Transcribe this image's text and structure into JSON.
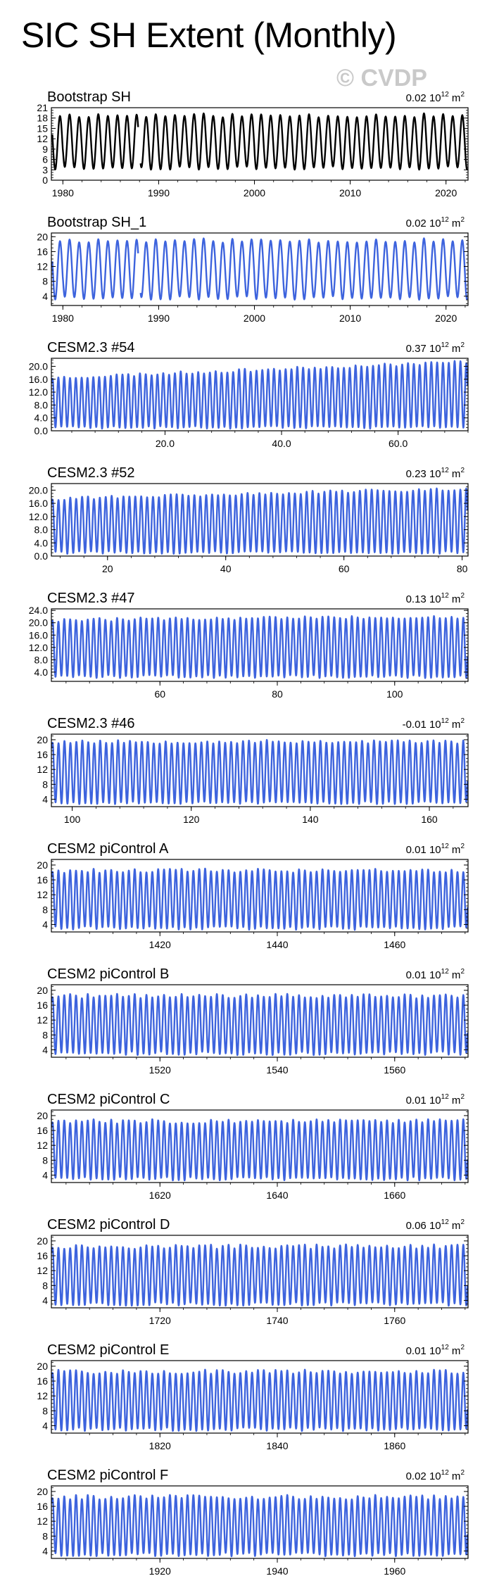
{
  "title": "SIC SH Extent (Monthly)",
  "watermark": "© CVDP",
  "colors": {
    "obs": "#000000",
    "model": "#3d63dd",
    "axis": "#000000"
  },
  "chart_data": [
    {
      "type": "line",
      "title": "Bootstrap SH",
      "trend": "0.02",
      "trend_unit_base": "10",
      "trend_unit_exp": "12",
      "trend_unit_tail": " m",
      "trend_unit_sup2": "2",
      "series_name": "Bootstrap SH",
      "color": "obs",
      "xlim": [
        1978.8,
        2022.3
      ],
      "ylim": [
        0,
        21
      ],
      "yticks": [
        0,
        3,
        6,
        9,
        12,
        15,
        18,
        21
      ],
      "yticklabels": [
        "0",
        "3",
        "6",
        "9",
        "12",
        "15",
        "18",
        "21"
      ],
      "xticks": [
        1980,
        1990,
        2000,
        2010,
        2020
      ],
      "xticklabels": [
        "1980",
        "1990",
        "2000",
        "2010",
        "2020"
      ],
      "series": {
        "start": 1978.9,
        "end": 2022.2,
        "min": 3.5,
        "max": 18.8,
        "peak_frac": 0.7,
        "gap": [
          1987.9,
          1988.1
        ],
        "variability": 0.6,
        "seed": 11
      }
    },
    {
      "type": "line",
      "title": "Bootstrap SH_1",
      "trend": "0.02",
      "trend_unit_base": "10",
      "trend_unit_exp": "12",
      "trend_unit_tail": " m",
      "trend_unit_sup2": "2",
      "series_name": "Bootstrap SH_1",
      "color": "model",
      "xlim": [
        1978.8,
        2022.3
      ],
      "ylim": [
        1.5,
        21
      ],
      "yticks": [
        4,
        8,
        12,
        16,
        20
      ],
      "yticklabels": [
        "4",
        "8",
        "12",
        "16",
        "20"
      ],
      "xticks": [
        1980,
        1990,
        2000,
        2010,
        2020
      ],
      "xticklabels": [
        "1980",
        "1990",
        "2000",
        "2010",
        "2020"
      ],
      "series": {
        "start": 1978.9,
        "end": 2022.2,
        "min": 3.5,
        "max": 19.0,
        "peak_frac": 0.7,
        "gap": [
          1987.9,
          1988.1
        ],
        "variability": 0.6,
        "seed": 11
      }
    },
    {
      "type": "line",
      "title": "CESM2.3 #54",
      "trend": "0.37",
      "trend_unit_base": "10",
      "trend_unit_exp": "12",
      "trend_unit_tail": " m",
      "trend_unit_sup2": "2",
      "series_name": "CESM2.3 #54",
      "color": "model",
      "xlim": [
        0.5,
        72
      ],
      "ylim": [
        0,
        22.5
      ],
      "yticks": [
        0,
        4,
        8,
        12,
        16,
        20
      ],
      "yticklabels": [
        "0.0",
        "4.0",
        "8.0",
        "12.0",
        "16.0",
        "20.0"
      ],
      "xticks": [
        20,
        40,
        60
      ],
      "xticklabels": [
        "20.0",
        "40.0",
        "60.0"
      ],
      "series": {
        "start": 0.6,
        "end": 71.9,
        "min": 1.0,
        "max": 16.5,
        "max_end": 21.5,
        "peak_frac": 0.7,
        "variability": 0.5,
        "seed": 23
      }
    },
    {
      "type": "line",
      "title": "CESM2.3 #52",
      "trend": "0.23",
      "trend_unit_base": "10",
      "trend_unit_exp": "12",
      "trend_unit_tail": " m",
      "trend_unit_sup2": "2",
      "series_name": "CESM2.3 #52",
      "color": "model",
      "xlim": [
        10.5,
        81
      ],
      "ylim": [
        0,
        22
      ],
      "yticks": [
        0,
        4,
        8,
        12,
        16,
        20
      ],
      "yticklabels": [
        "0.0",
        "4.0",
        "8.0",
        "12.0",
        "16.0",
        "20.0"
      ],
      "xticks": [
        20,
        40,
        60,
        80
      ],
      "xticklabels": [
        "20",
        "40",
        "60",
        "80"
      ],
      "series": {
        "start": 10.6,
        "end": 80.9,
        "min": 1.0,
        "max": 17.5,
        "max_end": 20.5,
        "peak_frac": 0.7,
        "variability": 0.5,
        "seed": 31
      }
    },
    {
      "type": "line",
      "title": "CESM2.3 #47",
      "trend": "0.13",
      "trend_unit_base": "10",
      "trend_unit_exp": "12",
      "trend_unit_tail": " m",
      "trend_unit_sup2": "2",
      "series_name": "CESM2.3 #47",
      "color": "model",
      "xlim": [
        41.5,
        112.5
      ],
      "ylim": [
        1,
        24.5
      ],
      "yticks": [
        4,
        8,
        12,
        16,
        20,
        24
      ],
      "yticklabels": [
        "4.0",
        "8.0",
        "12.0",
        "16.0",
        "20.0",
        "24.0"
      ],
      "xticks": [
        60,
        80,
        100
      ],
      "xticklabels": [
        "60",
        "80",
        "100"
      ],
      "series": {
        "start": 41.6,
        "end": 112.4,
        "min": 2.5,
        "max": 21.0,
        "max_end": 22.0,
        "peak_frac": 0.7,
        "variability": 0.6,
        "seed": 47
      }
    },
    {
      "type": "line",
      "title": "CESM2.3 #46",
      "trend": "-0.01",
      "trend_unit_base": "10",
      "trend_unit_exp": "12",
      "trend_unit_tail": " m",
      "trend_unit_sup2": "2",
      "series_name": "CESM2.3 #46",
      "color": "model",
      "xlim": [
        96.5,
        166.5
      ],
      "ylim": [
        2,
        21.5
      ],
      "yticks": [
        4,
        8,
        12,
        16,
        20
      ],
      "yticklabels": [
        "4",
        "8",
        "12",
        "16",
        "20"
      ],
      "xticks": [
        100,
        120,
        140,
        160
      ],
      "xticklabels": [
        "100",
        "120",
        "140",
        "160"
      ],
      "series": {
        "start": 96.6,
        "end": 166.4,
        "min": 3.0,
        "max": 19.5,
        "peak_frac": 0.7,
        "variability": 0.5,
        "seed": 53
      }
    },
    {
      "type": "line",
      "title": "CESM2 piControl A",
      "trend": "0.01",
      "trend_unit_base": "10",
      "trend_unit_exp": "12",
      "trend_unit_tail": " m",
      "trend_unit_sup2": "2",
      "series_name": "CESM2 piControl A",
      "color": "model",
      "xlim": [
        1401.5,
        1472.5
      ],
      "ylim": [
        2,
        21.5
      ],
      "yticks": [
        4,
        8,
        12,
        16,
        20
      ],
      "yticklabels": [
        "4",
        "8",
        "12",
        "16",
        "20"
      ],
      "xticks": [
        1420,
        1440,
        1460
      ],
      "xticklabels": [
        "1420",
        "1440",
        "1460"
      ],
      "series": {
        "start": 1401.6,
        "end": 1472.4,
        "min": 3.0,
        "max": 18.5,
        "peak_frac": 0.7,
        "variability": 0.6,
        "seed": 61
      }
    },
    {
      "type": "line",
      "title": "CESM2 piControl B",
      "trend": "0.01",
      "trend_unit_base": "10",
      "trend_unit_exp": "12",
      "trend_unit_tail": " m",
      "trend_unit_sup2": "2",
      "series_name": "CESM2 piControl B",
      "color": "model",
      "xlim": [
        1501.5,
        1572.5
      ],
      "ylim": [
        2,
        21.5
      ],
      "yticks": [
        4,
        8,
        12,
        16,
        20
      ],
      "yticklabels": [
        "4",
        "8",
        "12",
        "16",
        "20"
      ],
      "xticks": [
        1520,
        1540,
        1560
      ],
      "xticklabels": [
        "1520",
        "1540",
        "1560"
      ],
      "series": {
        "start": 1501.6,
        "end": 1572.4,
        "min": 3.0,
        "max": 18.5,
        "peak_frac": 0.7,
        "variability": 0.6,
        "seed": 71
      }
    },
    {
      "type": "line",
      "title": "CESM2 piControl C",
      "trend": "0.01",
      "trend_unit_base": "10",
      "trend_unit_exp": "12",
      "trend_unit_tail": " m",
      "trend_unit_sup2": "2",
      "series_name": "CESM2 piControl C",
      "color": "model",
      "xlim": [
        1601.5,
        1672.5
      ],
      "ylim": [
        2,
        21.5
      ],
      "yticks": [
        4,
        8,
        12,
        16,
        20
      ],
      "yticklabels": [
        "4",
        "8",
        "12",
        "16",
        "20"
      ],
      "xticks": [
        1620,
        1640,
        1660
      ],
      "xticklabels": [
        "1620",
        "1640",
        "1660"
      ],
      "series": {
        "start": 1601.6,
        "end": 1672.4,
        "min": 3.0,
        "max": 18.5,
        "peak_frac": 0.7,
        "variability": 0.6,
        "seed": 83
      }
    },
    {
      "type": "line",
      "title": "CESM2 piControl D",
      "trend": "0.06",
      "trend_unit_base": "10",
      "trend_unit_exp": "12",
      "trend_unit_tail": " m",
      "trend_unit_sup2": "2",
      "series_name": "CESM2 piControl D",
      "color": "model",
      "xlim": [
        1701.5,
        1772.5
      ],
      "ylim": [
        2,
        21.5
      ],
      "yticks": [
        4,
        8,
        12,
        16,
        20
      ],
      "yticklabels": [
        "4",
        "8",
        "12",
        "16",
        "20"
      ],
      "xticks": [
        1720,
        1740,
        1760
      ],
      "xticklabels": [
        "1720",
        "1740",
        "1760"
      ],
      "series": {
        "start": 1701.6,
        "end": 1772.4,
        "min": 3.0,
        "max": 18.5,
        "peak_frac": 0.7,
        "variability": 0.6,
        "seed": 97
      }
    },
    {
      "type": "line",
      "title": "CESM2 piControl E",
      "trend": "0.01",
      "trend_unit_base": "10",
      "trend_unit_exp": "12",
      "trend_unit_tail": " m",
      "trend_unit_sup2": "2",
      "series_name": "CESM2 piControl E",
      "color": "model",
      "xlim": [
        1801.5,
        1872.5
      ],
      "ylim": [
        2,
        21.5
      ],
      "yticks": [
        4,
        8,
        12,
        16,
        20
      ],
      "yticklabels": [
        "4",
        "8",
        "12",
        "16",
        "20"
      ],
      "xticks": [
        1820,
        1840,
        1860
      ],
      "xticklabels": [
        "1820",
        "1840",
        "1860"
      ],
      "series": {
        "start": 1801.6,
        "end": 1872.4,
        "min": 3.0,
        "max": 18.5,
        "peak_frac": 0.7,
        "variability": 0.6,
        "seed": 101
      }
    },
    {
      "type": "line",
      "title": "CESM2 piControl F",
      "trend": "0.02",
      "trend_unit_base": "10",
      "trend_unit_exp": "12",
      "trend_unit_tail": " m",
      "trend_unit_sup2": "2",
      "series_name": "CESM2 piControl F",
      "color": "model",
      "xlim": [
        1901.5,
        1972.5
      ],
      "ylim": [
        2,
        21.5
      ],
      "yticks": [
        4,
        8,
        12,
        16,
        20
      ],
      "yticklabels": [
        "4",
        "8",
        "12",
        "16",
        "20"
      ],
      "xticks": [
        1920,
        1940,
        1960
      ],
      "xticklabels": [
        "1920",
        "1940",
        "1960"
      ],
      "series": {
        "start": 1901.6,
        "end": 1972.4,
        "min": 3.0,
        "max": 18.5,
        "peak_frac": 0.7,
        "variability": 0.6,
        "seed": 113
      }
    }
  ]
}
